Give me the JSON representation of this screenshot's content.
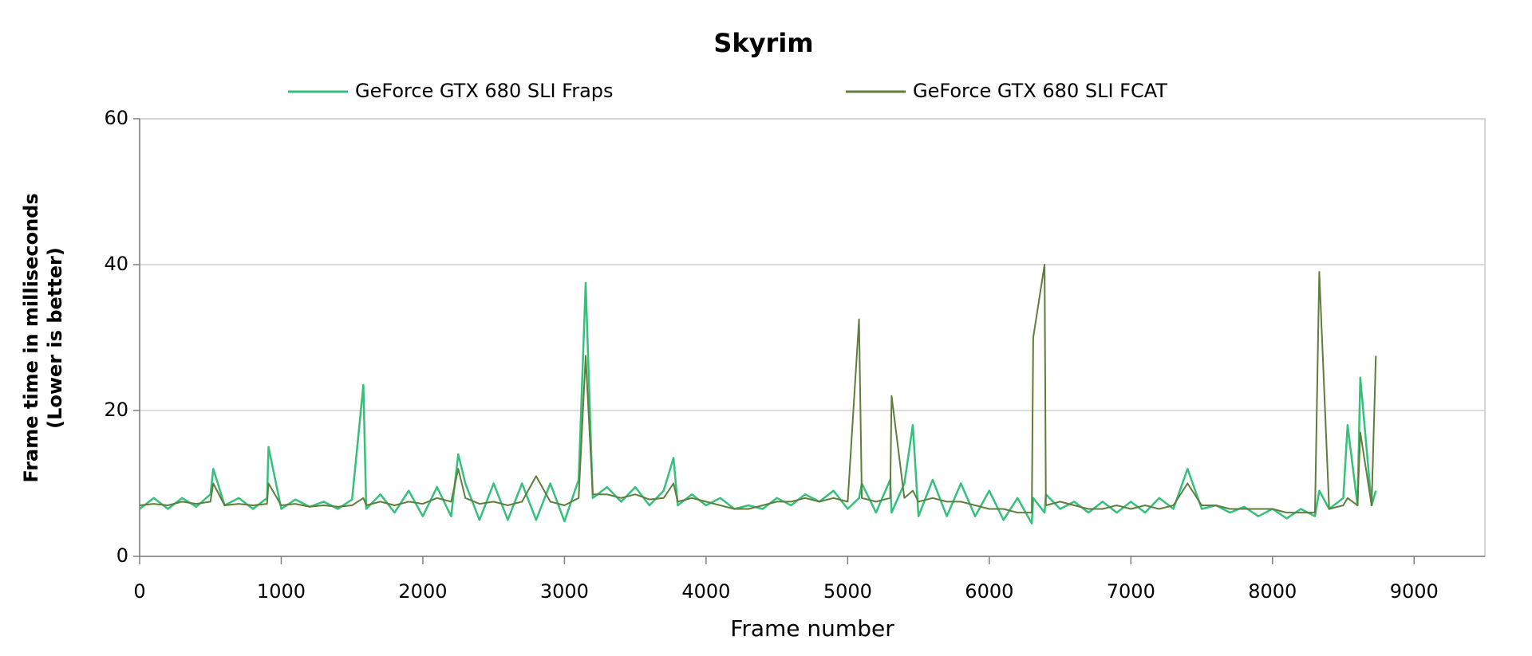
{
  "chart_data": {
    "type": "line",
    "title": "Skyrim",
    "x_label": "Frame number",
    "y_label": [
      "Frame time in milliseconds",
      "(Lower is better)"
    ],
    "x": [
      0,
      100,
      200,
      300,
      400,
      500,
      520,
      600,
      700,
      800,
      900,
      910,
      1000,
      1100,
      1200,
      1300,
      1400,
      1500,
      1580,
      1600,
      1700,
      1800,
      1900,
      2000,
      2100,
      2200,
      2250,
      2300,
      2400,
      2500,
      2600,
      2700,
      2800,
      2900,
      3000,
      3100,
      3150,
      3200,
      3300,
      3400,
      3500,
      3600,
      3700,
      3770,
      3800,
      3900,
      4000,
      4100,
      4200,
      4300,
      4400,
      4500,
      4600,
      4700,
      4800,
      4900,
      5000,
      5080,
      5100,
      5200,
      5300,
      5310,
      5400,
      5460,
      5500,
      5600,
      5700,
      5800,
      5900,
      6000,
      6100,
      6200,
      6300,
      6310,
      6390,
      6400,
      6500,
      6600,
      6700,
      6800,
      6900,
      7000,
      7100,
      7200,
      7300,
      7400,
      7500,
      7600,
      7700,
      7800,
      7900,
      8000,
      8100,
      8200,
      8300,
      8330,
      8400,
      8500,
      8530,
      8600,
      8620,
      8700,
      8730
    ],
    "series": [
      {
        "name": "GeForce GTX 680 SLI Fraps",
        "color": "#35c07c",
        "values": [
          6.5,
          8,
          6.5,
          8,
          6.8,
          8.5,
          12,
          7,
          8,
          6.5,
          8,
          15,
          6.5,
          7.8,
          6.8,
          7.5,
          6.5,
          7.8,
          23.5,
          6.5,
          8.5,
          6,
          9,
          5.5,
          9.5,
          5.5,
          14,
          10,
          5,
          10,
          5,
          10,
          5,
          10,
          4.8,
          10.5,
          37.5,
          8,
          9.5,
          7.5,
          9.5,
          7,
          9,
          13.5,
          7,
          8.5,
          7,
          8,
          6.5,
          7,
          6.5,
          8,
          7,
          8.5,
          7.5,
          9,
          6.5,
          8,
          10,
          6,
          10.5,
          6,
          10,
          18,
          5.5,
          10.5,
          5.5,
          10,
          5.5,
          9,
          5,
          8,
          4.5,
          8,
          6,
          8.5,
          6.5,
          7.5,
          6,
          7.5,
          6,
          7.5,
          6,
          8,
          6.5,
          12,
          6.5,
          7,
          6,
          6.8,
          5.5,
          6.5,
          5.2,
          6.5,
          5.5,
          9,
          6.5,
          8,
          18,
          7,
          24.5,
          7,
          9
        ]
      },
      {
        "name": "GeForce GTX 680 SLI FCAT",
        "color": "#5f7d3c",
        "values": [
          7,
          7.2,
          7,
          7.5,
          7.2,
          7.5,
          10,
          7,
          7.2,
          7,
          7.2,
          10,
          7,
          7.2,
          6.8,
          7,
          6.8,
          7,
          8,
          7,
          7.5,
          7,
          7.5,
          7.2,
          8,
          7.5,
          12,
          8,
          7.2,
          7.5,
          7,
          7.5,
          11,
          7.5,
          7,
          8,
          27.5,
          8.5,
          8.5,
          8,
          8.5,
          7.8,
          8,
          10,
          7.5,
          8,
          7.5,
          7,
          6.5,
          6.5,
          7,
          7.5,
          7.5,
          8,
          7.5,
          8,
          7.5,
          32.5,
          8,
          7.5,
          8,
          22,
          8,
          9,
          7.5,
          8,
          7.5,
          7.5,
          7,
          6.5,
          6.5,
          6,
          6,
          30,
          40,
          7,
          7.5,
          7,
          6.5,
          6.5,
          7,
          6.5,
          7,
          6.5,
          7,
          10,
          7,
          7,
          6.5,
          6.5,
          6.5,
          6.5,
          6,
          6,
          6,
          39,
          6.5,
          7,
          8,
          7,
          17,
          7,
          27.5
        ]
      }
    ],
    "xlim": [
      0,
      9500
    ],
    "xticks": [
      0,
      1000,
      2000,
      3000,
      4000,
      5000,
      6000,
      7000,
      8000,
      9000
    ],
    "ylim": [
      0,
      60
    ],
    "yticks": [
      0,
      20,
      40,
      60
    ],
    "grid": true
  }
}
